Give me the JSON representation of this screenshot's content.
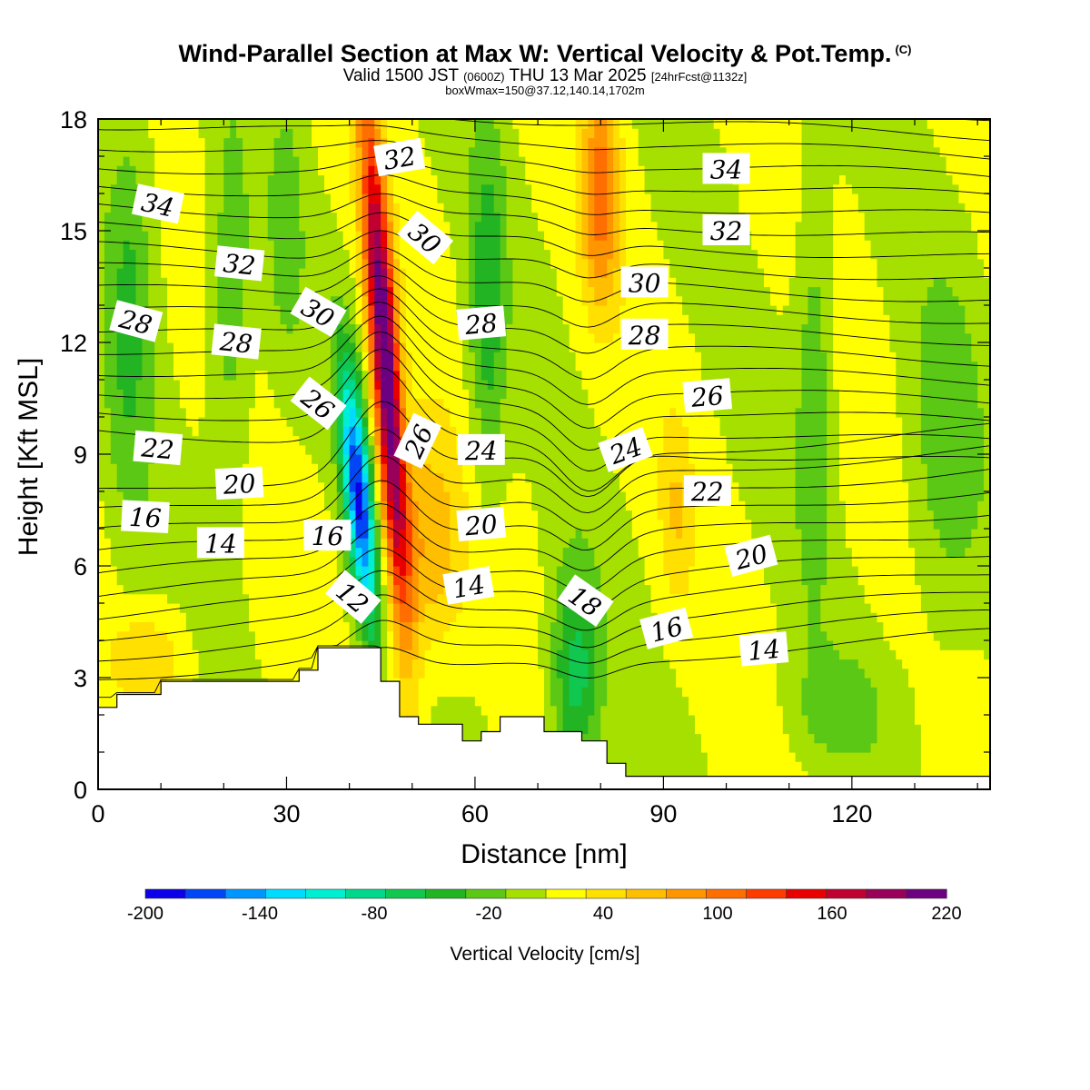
{
  "header": {
    "title": "Wind-Parallel Section at Max W: Vertical Velocity & Pot.Temp.",
    "copyright": "(C)",
    "valid_main": "Valid 1500 JST",
    "valid_zulu": "(0600Z)",
    "valid_date": "THU 13 Mar 2025",
    "valid_fcst": "[24hrFcst@1132z]",
    "box_info": "boxWmax=150@37.12,140.14,1702m"
  },
  "chart_data": {
    "type": "heatmap",
    "xlabel": "Distance [nm]",
    "ylabel": "Height [Kft MSL]",
    "xlim": [
      0,
      142
    ],
    "ylim": [
      0,
      18
    ],
    "x_ticks": [
      "0",
      "30",
      "60",
      "90",
      "120"
    ],
    "y_ticks": [
      "0",
      "3",
      "6",
      "9",
      "12",
      "15",
      "18"
    ],
    "colorbar": {
      "label": "Vertical Velocity [cm/s]",
      "tick_labels": [
        "-200",
        "-140",
        "-80",
        "-20",
        "40",
        "100",
        "160",
        "220"
      ],
      "range": [
        -200,
        220
      ],
      "colors": [
        "#0c00e8",
        "#0046f4",
        "#0096ff",
        "#00dcff",
        "#00eed2",
        "#00d88c",
        "#10c850",
        "#22b422",
        "#5ac814",
        "#a6e000",
        "#ffff00",
        "#ffe000",
        "#ffbe00",
        "#ff9600",
        "#ff6e00",
        "#ff3c00",
        "#e80000",
        "#c00030",
        "#98005a",
        "#6c0080"
      ]
    },
    "terrain_kft": [
      [
        0,
        2.2
      ],
      [
        3,
        2.2
      ],
      [
        3,
        2.55
      ],
      [
        10,
        2.55
      ],
      [
        10,
        2.9
      ],
      [
        32,
        2.9
      ],
      [
        32,
        3.2
      ],
      [
        35,
        3.2
      ],
      [
        35,
        3.8
      ],
      [
        45,
        3.8
      ],
      [
        45,
        2.9
      ],
      [
        48,
        2.9
      ],
      [
        48,
        1.95
      ],
      [
        51,
        1.95
      ],
      [
        51,
        1.75
      ],
      [
        58,
        1.75
      ],
      [
        58,
        1.3
      ],
      [
        61,
        1.3
      ],
      [
        61,
        1.55
      ],
      [
        64,
        1.55
      ],
      [
        64,
        1.95
      ],
      [
        71,
        1.95
      ],
      [
        71,
        1.55
      ],
      [
        77,
        1.55
      ],
      [
        77,
        1.3
      ],
      [
        81,
        1.3
      ],
      [
        81,
        0.7
      ],
      [
        84,
        0.7
      ],
      [
        84,
        0.35
      ],
      [
        142,
        0.35
      ]
    ],
    "theta_contour_labels": [
      {
        "text": "34",
        "x": 9.5,
        "y": 15.7,
        "rot": 12
      },
      {
        "text": "32",
        "x": 22.5,
        "y": 14.1,
        "rot": 6
      },
      {
        "text": "28",
        "x": 6,
        "y": 12.55,
        "rot": 15
      },
      {
        "text": "30",
        "x": 35,
        "y": 12.8,
        "rot": 30
      },
      {
        "text": "28",
        "x": 22,
        "y": 12.0,
        "rot": 6
      },
      {
        "text": "26",
        "x": 35,
        "y": 10.35,
        "rot": 38
      },
      {
        "text": "32",
        "x": 48,
        "y": 16.95,
        "rot": -10
      },
      {
        "text": "30",
        "x": 52,
        "y": 14.8,
        "rot": 40
      },
      {
        "text": "26",
        "x": 51,
        "y": 9.35,
        "rot": -65
      },
      {
        "text": "28",
        "x": 61,
        "y": 12.5,
        "rot": -5
      },
      {
        "text": "24",
        "x": 61,
        "y": 9.1,
        "rot": 0
      },
      {
        "text": "20",
        "x": 61,
        "y": 7.1,
        "rot": -5
      },
      {
        "text": "14",
        "x": 59,
        "y": 5.45,
        "rot": -10
      },
      {
        "text": "22",
        "x": 9.5,
        "y": 9.15,
        "rot": 5
      },
      {
        "text": "20",
        "x": 22.5,
        "y": 8.2,
        "rot": -3
      },
      {
        "text": "16",
        "x": 7.5,
        "y": 7.3,
        "rot": 3
      },
      {
        "text": "14",
        "x": 19.5,
        "y": 6.6,
        "rot": 0
      },
      {
        "text": "16",
        "x": 36.5,
        "y": 6.8,
        "rot": 0
      },
      {
        "text": "12",
        "x": 40.5,
        "y": 5.15,
        "rot": 40
      },
      {
        "text": "18",
        "x": 77.5,
        "y": 5.05,
        "rot": 35
      },
      {
        "text": "16",
        "x": 90.5,
        "y": 4.3,
        "rot": -15
      },
      {
        "text": "14",
        "x": 106,
        "y": 3.75,
        "rot": -5
      },
      {
        "text": "34",
        "x": 100,
        "y": 16.65,
        "rot": 0
      },
      {
        "text": "32",
        "x": 100,
        "y": 15.0,
        "rot": 0
      },
      {
        "text": "30",
        "x": 87,
        "y": 13.6,
        "rot": 0
      },
      {
        "text": "28",
        "x": 87,
        "y": 12.2,
        "rot": 0
      },
      {
        "text": "26",
        "x": 97,
        "y": 10.55,
        "rot": -5
      },
      {
        "text": "24",
        "x": 84,
        "y": 9.1,
        "rot": -20
      },
      {
        "text": "22",
        "x": 97,
        "y": 8.0,
        "rot": 0
      },
      {
        "text": "20",
        "x": 104,
        "y": 6.25,
        "rot": -15
      }
    ]
  }
}
